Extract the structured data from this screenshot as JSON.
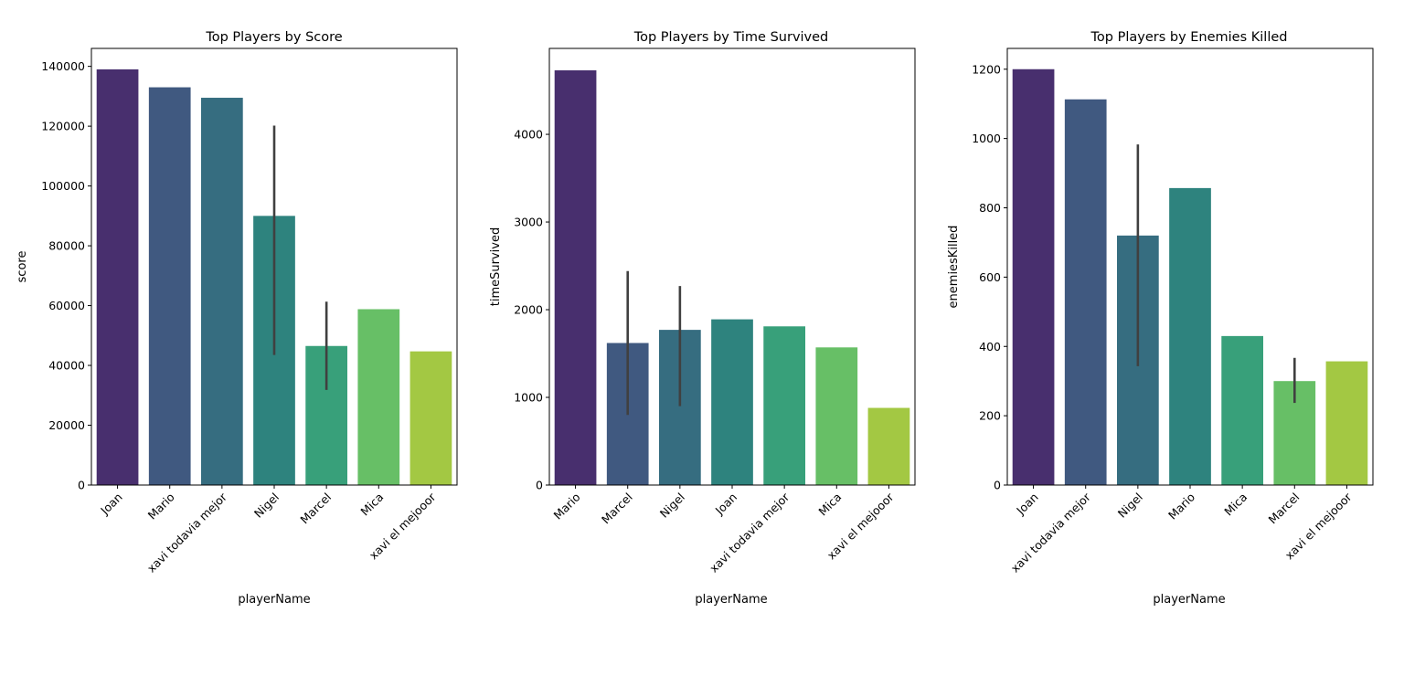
{
  "chart_data": [
    {
      "type": "bar",
      "title": "Top Players by Score",
      "xlabel": "playerName",
      "ylabel": "score",
      "categories": [
        "Joan",
        "Mario",
        "xavi todavia mejor",
        "Nigel",
        "Marcel",
        "Mica",
        "xavi el mejooor"
      ],
      "values": [
        139000,
        133000,
        129500,
        90000,
        46500,
        58800,
        44700
      ],
      "error_bars": [
        null,
        null,
        null,
        [
          43500,
          120200
        ],
        [
          31800,
          61300
        ],
        null,
        null
      ],
      "ylim": [
        0,
        146000
      ],
      "yticks": [
        0,
        20000,
        40000,
        60000,
        80000,
        100000,
        120000,
        140000
      ],
      "grid": false
    },
    {
      "type": "bar",
      "title": "Top Players by Time Survived",
      "xlabel": "playerName",
      "ylabel": "timeSurvived",
      "categories": [
        "Mario",
        "Marcel",
        "Nigel",
        "Joan",
        "xavi todavia mejor",
        "Mica",
        "xavi el mejooor"
      ],
      "values": [
        4730,
        1620,
        1770,
        1890,
        1810,
        1570,
        880
      ],
      "error_bars": [
        null,
        [
          800,
          2440
        ],
        [
          900,
          2270
        ],
        null,
        null,
        null,
        null
      ],
      "ylim": [
        0,
        4980
      ],
      "yticks": [
        0,
        1000,
        2000,
        3000,
        4000
      ],
      "grid": false
    },
    {
      "type": "bar",
      "title": "Top Players by Enemies Killed",
      "xlabel": "playerName",
      "ylabel": "enemiesKilled",
      "categories": [
        "Joan",
        "xavi todavia mejor",
        "Nigel",
        "Mario",
        "Mica",
        "Marcel",
        "xavi el mejooor"
      ],
      "values": [
        1200,
        1113,
        720,
        857,
        430,
        300,
        357
      ],
      "error_bars": [
        null,
        null,
        [
          343,
          983
        ],
        null,
        null,
        [
          237,
          367
        ],
        null
      ],
      "ylim": [
        0,
        1260
      ],
      "yticks": [
        0,
        200,
        400,
        600,
        800,
        1000,
        1200
      ],
      "grid": false
    }
  ],
  "palette": [
    "#482f6e",
    "#405980",
    "#366d80",
    "#2e837e",
    "#38a07a",
    "#67bf66",
    "#a3c843"
  ],
  "errorbar_color": "#404040"
}
